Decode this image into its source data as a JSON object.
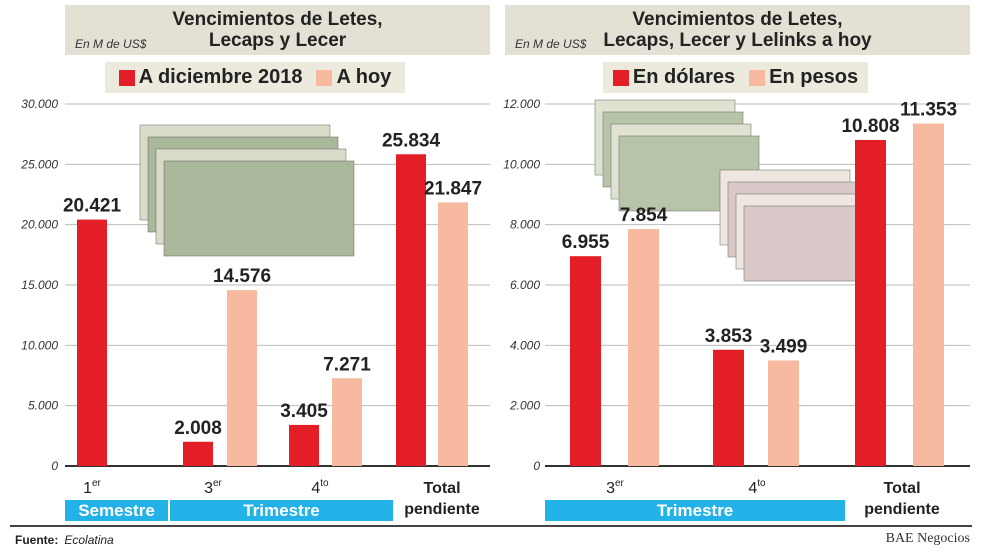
{
  "colors": {
    "dark": "#e41e26",
    "light": "#f7b9a0",
    "band": "#22b2e8"
  },
  "footer": {
    "source_label": "Fuente:",
    "source": "Ecolatina",
    "brand": "BAE Negocios"
  },
  "chart_data": [
    {
      "type": "bar",
      "title": "Vencimientos de Letes, Lecaps y Lecer",
      "unit": "En M de US$",
      "ylim": [
        0,
        30000
      ],
      "yticks": [
        "0",
        "5.000",
        "10.000",
        "15.000",
        "20.000",
        "25.000",
        "30.000"
      ],
      "grid": true,
      "legend_position": "top",
      "categories": [
        {
          "main": "1",
          "sup": "er"
        },
        {
          "main": "3",
          "sup": "er"
        },
        {
          "main": "4",
          "sup": "to"
        },
        {
          "main": "Total pendiente",
          "sup": ""
        }
      ],
      "groups": [
        "Semestre",
        "Trimestre"
      ],
      "series": [
        {
          "name": "A diciembre 2018",
          "values": [
            20421,
            2008,
            3405,
            25834
          ],
          "labels": [
            "20.421",
            "2.008",
            "3.405",
            "25.834"
          ]
        },
        {
          "name": "A hoy",
          "values": [
            null,
            14576,
            7271,
            21847
          ],
          "labels": [
            "",
            "14.576",
            "7.271",
            "21.847"
          ]
        }
      ]
    },
    {
      "type": "bar",
      "title": "Vencimientos de Letes, Lecaps, Lecer y Lelinks a hoy",
      "unit": "En M de US$",
      "ylim": [
        0,
        12000
      ],
      "yticks": [
        "0",
        "2.000",
        "4.000",
        "6.000",
        "8.000",
        "10.000",
        "12.000"
      ],
      "grid": true,
      "legend_position": "top",
      "categories": [
        {
          "main": "3",
          "sup": "er"
        },
        {
          "main": "4",
          "sup": "to"
        },
        {
          "main": "Total pendiente",
          "sup": ""
        }
      ],
      "groups": [
        "Trimestre"
      ],
      "series": [
        {
          "name": "En dólares",
          "values": [
            6955,
            3853,
            10808
          ],
          "labels": [
            "6.955",
            "3.853",
            "10.808"
          ]
        },
        {
          "name": "En pesos",
          "values": [
            7854,
            3499,
            11353
          ],
          "labels": [
            "7.854",
            "3.499",
            "11.353"
          ]
        }
      ]
    }
  ]
}
